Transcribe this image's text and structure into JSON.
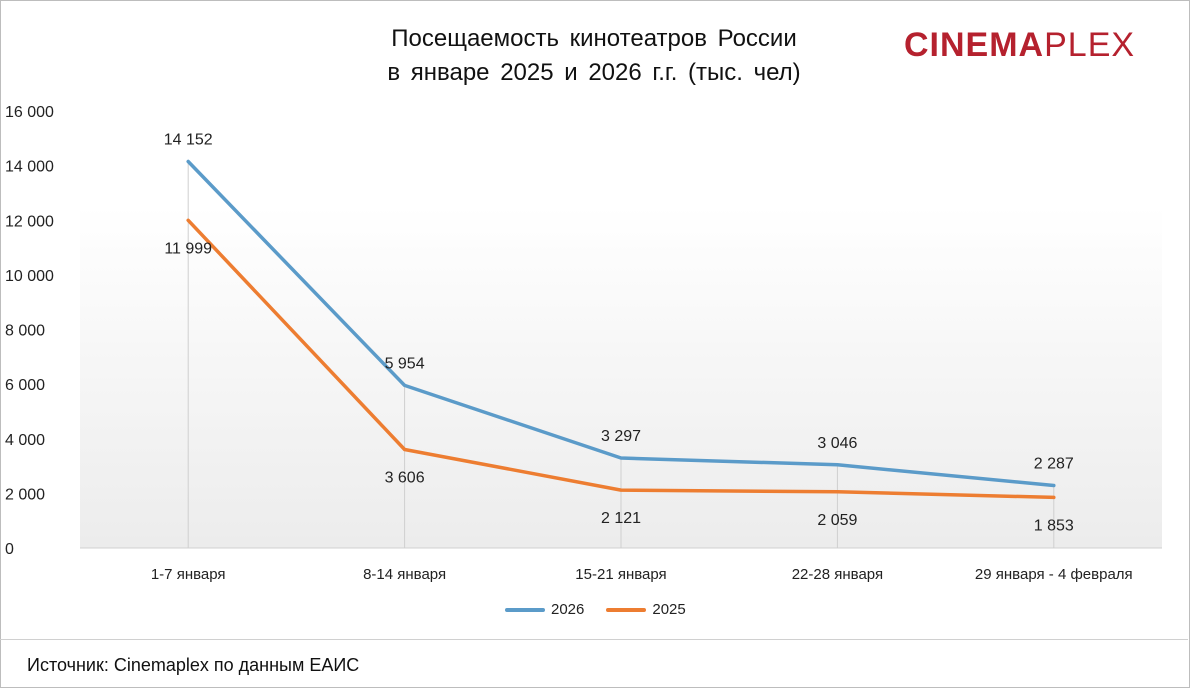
{
  "header": {
    "title_line1": "Посещаемость кинотеатров России",
    "title_line2": "в январе 2025 и 2026 г.г. (тыс. чел)",
    "logo_part1": "CINEMA",
    "logo_part2": "PLEX"
  },
  "footer": {
    "source": "Источник: Cinemaplex по данным ЕАИС"
  },
  "chart_data": {
    "type": "line",
    "title": "Посещаемость кинотеатров России в январе 2025 и 2026 г.г. (тыс. чел)",
    "categories": [
      "1-7 января",
      "8-14 января",
      "15-21 января",
      "22-28 января",
      "29 января  - 4 февраля"
    ],
    "series": [
      {
        "name": "2026",
        "values": [
          14152,
          5954,
          3297,
          3046,
          2287
        ],
        "labels": [
          "14 152",
          "5 954",
          "3 297",
          "3 046",
          "2 287"
        ],
        "color": "#5b9bc9",
        "label_position": "above"
      },
      {
        "name": "2025",
        "values": [
          11999,
          3606,
          2121,
          2059,
          1853
        ],
        "labels": [
          "11 999",
          "3 606",
          "2 121",
          "2 059",
          "1 853"
        ],
        "color": "#ed7d31",
        "label_position": "below"
      }
    ],
    "ylim": [
      0,
      16000
    ],
    "yticks": [
      0,
      2000,
      4000,
      6000,
      8000,
      10000,
      12000,
      14000,
      16000
    ],
    "ytick_labels": [
      "0",
      "2 000",
      "4 000",
      "6 000",
      "8 000",
      "10 000",
      "12 000",
      "14 000",
      "16 000"
    ],
    "grid": false,
    "drop_lines": true,
    "legend_position": "bottom"
  }
}
